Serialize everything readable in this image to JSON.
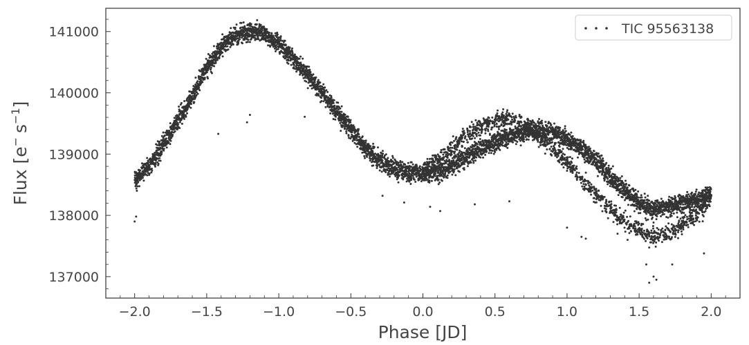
{
  "chart_data": {
    "type": "scatter",
    "title": "",
    "xlabel": "Phase [JD]",
    "ylabel_main": "Flux [e",
    "ylabel_sup1": "−",
    "ylabel_mid": "s",
    "ylabel_sup2": "−1",
    "ylabel_end": "]",
    "xlim": [
      -2.2,
      2.2
    ],
    "ylim": [
      136650,
      141380
    ],
    "x_ticks": [
      -2.0,
      -1.5,
      -1.0,
      -0.5,
      0.0,
      0.5,
      1.0,
      1.5,
      2.0
    ],
    "x_tick_labels": [
      "−2.0",
      "−1.5",
      "−1.0",
      "−0.5",
      "0.0",
      "0.5",
      "1.0",
      "1.5",
      "2.0"
    ],
    "y_ticks": [
      137000,
      138000,
      139000,
      140000,
      141000
    ],
    "y_tick_labels": [
      "137000",
      "138000",
      "139000",
      "140000",
      "141000"
    ],
    "grid": false,
    "legend_position": "top-right",
    "series": [
      {
        "name": "TIC 95563138",
        "color": "#333333",
        "marker": "dot",
        "trend_x": [
          -2.0,
          -1.9,
          -1.8,
          -1.7,
          -1.6,
          -1.5,
          -1.4,
          -1.3,
          -1.2,
          -1.1,
          -1.0,
          -0.9,
          -0.8,
          -0.7,
          -0.6,
          -0.5,
          -0.4,
          -0.3,
          -0.2,
          -0.1,
          0.0,
          0.1,
          0.2,
          0.3,
          0.4,
          0.5,
          0.6,
          0.7,
          0.8,
          0.9,
          1.0,
          1.1,
          1.2,
          1.3,
          1.4,
          1.5,
          1.6,
          1.7,
          1.8,
          1.9,
          2.0
        ],
        "trend_y": [
          138550,
          138800,
          139150,
          139550,
          139950,
          140400,
          140750,
          140950,
          141000,
          140970,
          140800,
          140550,
          140300,
          140000,
          139700,
          139400,
          139100,
          138900,
          138750,
          138700,
          138680,
          138700,
          138800,
          138950,
          139100,
          139200,
          139300,
          139350,
          139400,
          139350,
          139250,
          139100,
          138900,
          138650,
          138400,
          138200,
          138100,
          138150,
          138200,
          138250,
          138350
        ],
        "secondary_x": [
          0.0,
          0.1,
          0.2,
          0.3,
          0.4,
          0.5,
          0.6,
          0.7,
          0.8,
          0.9,
          1.0,
          1.1,
          1.2,
          1.3,
          1.4,
          1.5,
          1.6,
          1.7,
          1.8,
          1.9,
          2.0
        ],
        "secondary_y": [
          138750,
          138900,
          139100,
          139300,
          139450,
          139550,
          139600,
          139500,
          139300,
          139100,
          138850,
          138600,
          138350,
          138100,
          137900,
          137750,
          137650,
          137700,
          137850,
          138000,
          138300
        ],
        "outliers_x": [
          -2.0,
          -1.99,
          -1.42,
          -1.22,
          -1.2,
          -0.82,
          -0.57,
          -0.28,
          -0.13,
          0.05,
          0.12,
          0.36,
          0.6,
          1.0,
          1.1,
          1.13,
          1.35,
          1.42,
          1.55,
          1.57,
          1.6,
          1.62,
          1.73,
          1.95
        ],
        "outliers_y": [
          137900,
          137980,
          139330,
          139520,
          139640,
          139610,
          139380,
          138320,
          138210,
          138140,
          138070,
          138180,
          138230,
          137800,
          137650,
          137620,
          137700,
          137600,
          137200,
          136900,
          137000,
          136950,
          137200,
          137380
        ]
      }
    ]
  }
}
